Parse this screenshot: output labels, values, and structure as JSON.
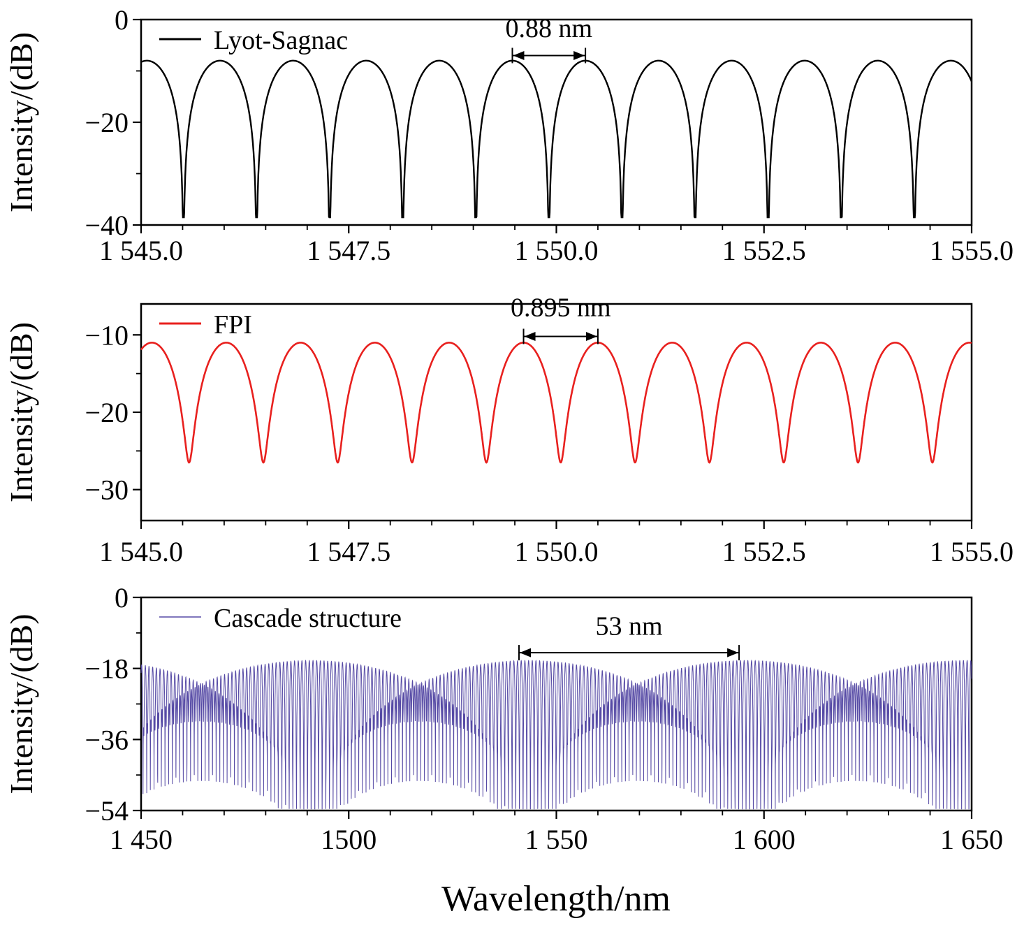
{
  "figure": {
    "xlabel": "Wavelength/nm",
    "ylabel": "Intensity/(dB)"
  },
  "chart_data": [
    {
      "type": "line",
      "title": "",
      "ylabel": "Intensity/(dB)",
      "xlabel": "",
      "xlim": [
        1545.0,
        1555.0
      ],
      "ylim": [
        -40,
        0
      ],
      "xtick_values": [
        1545.0,
        1547.5,
        1550.0,
        1552.5,
        1555.0
      ],
      "xtick_labels": [
        "1 545.0",
        "1 547.5",
        "1 550.0",
        "1 552.5",
        "1 555.0"
      ],
      "x_minor_step": 0.5,
      "ytick_values": [
        0,
        -20,
        -40
      ],
      "ytick_labels": [
        "0",
        "−20",
        "−40"
      ],
      "y_minor_step": 10,
      "grid": false,
      "legend_position": "top-left",
      "legend": {
        "label": "Lyot-Sagnac",
        "color": "#000000"
      },
      "series": [
        {
          "name": "Lyot-Sagnac",
          "color": "#000000",
          "stroke_width": 2.4,
          "samples": 2600,
          "model": {
            "kind": "log_abs_cos",
            "period": 0.88,
            "x0": 1550.35,
            "peak_db": -8,
            "min_db": -38.5
          }
        }
      ],
      "annotation": {
        "text": "0.88 nm",
        "x_start": 1549.47,
        "x_end": 1550.35,
        "y_arrow_db": -7.0,
        "y_text_db": -3.4
      }
    },
    {
      "type": "line",
      "title": "",
      "ylabel": "Intensity/(dB)",
      "xlabel": "",
      "xlim": [
        1545.0,
        1555.0
      ],
      "ylim": [
        -34,
        -6
      ],
      "xtick_values": [
        1545.0,
        1547.5,
        1550.0,
        1552.5,
        1555.0
      ],
      "xtick_labels": [
        "1 545.0",
        "1 547.5",
        "1 550.0",
        "1 552.5",
        "1 555.0"
      ],
      "x_minor_step": 0.5,
      "ytick_values": [
        -10,
        -20,
        -30
      ],
      "ytick_labels": [
        "−10",
        "−20",
        "−30"
      ],
      "y_minor_step": 5,
      "grid": false,
      "legend_position": "top-left",
      "legend": {
        "label": "FPI",
        "color": "#e8201e"
      },
      "series": [
        {
          "name": "FPI",
          "color": "#e8201e",
          "stroke_width": 2.6,
          "samples": 2600,
          "model": {
            "kind": "airy",
            "period": 0.895,
            "x0": 1550.5,
            "peak_db": -11,
            "min_db": -26.5
          }
        }
      ],
      "annotation": {
        "text": "0.895 nm",
        "x_start": 1549.605,
        "x_end": 1550.5,
        "y_arrow_db": -10.2,
        "y_text_db": -7.6
      }
    },
    {
      "type": "line",
      "title": "",
      "ylabel": "Intensity/(dB)",
      "xlabel": "Wavelength/nm",
      "xlim": [
        1450,
        1650
      ],
      "ylim": [
        -54,
        0
      ],
      "xtick_values": [
        1450,
        1500,
        1550,
        1600,
        1650
      ],
      "xtick_labels": [
        "1 450",
        "1500",
        "1 550",
        "1 600",
        "1 650"
      ],
      "x_minor_step": 10,
      "ytick_values": [
        0,
        -18,
        -36,
        -54
      ],
      "ytick_labels": [
        "0",
        "−18",
        "−36",
        "−54"
      ],
      "y_minor_step": 9,
      "grid": false,
      "legend_position": "top-left",
      "legend": {
        "label": "Cascade structure",
        "color": "#564aa5"
      },
      "series": [
        {
          "name": "Cascade structure",
          "color": "#564aa5",
          "stroke_width": 1.0,
          "samples": 9000,
          "model": {
            "kind": "cascade",
            "offset_db": 3.0,
            "clamp_db": -53.6,
            "beat_period_nm": 52.5,
            "components": [
              {
                "kind": "log_abs_cos",
                "period": 0.88,
                "x0": 1550.35,
                "peak_db": -8,
                "min_db": -38.5
              },
              {
                "kind": "airy",
                "period": 0.895,
                "x0": 1543.31,
                "peak_db": -11,
                "min_db": -26.5
              }
            ]
          }
        }
      ],
      "annotation": {
        "text": "53 nm",
        "x_start": 1541,
        "x_end": 1594,
        "y_arrow_db": -14.0,
        "y_text_db": -9.5
      }
    }
  ]
}
